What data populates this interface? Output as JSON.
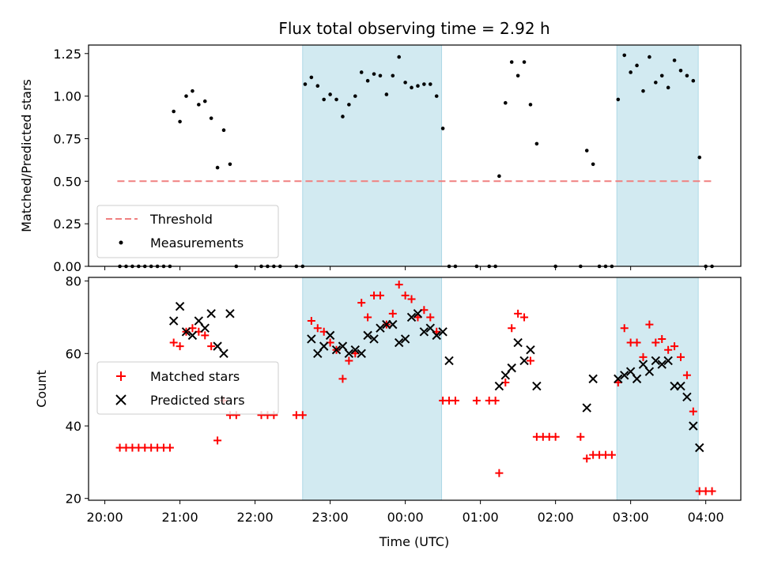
{
  "chart_data": [
    {
      "type": "scatter",
      "title": "Flux total observing time = 2.92 h",
      "xlabel": "",
      "ylabel": "Matched/Predicted stars",
      "xlim": [
        "19:47",
        "04:28"
      ],
      "ylim": [
        0,
        1.3
      ],
      "yticks": [
        "0.00",
        "0.25",
        "0.50",
        "0.75",
        "1.00",
        "1.25"
      ],
      "shaded_intervals": [
        [
          "22:38",
          "00:29"
        ],
        [
          "02:49",
          "03:54"
        ]
      ],
      "shade_color": "#add8e6",
      "threshold": {
        "name": "Threshold",
        "y": 0.5,
        "x_range": [
          "20:10",
          "04:05"
        ],
        "color": "#f08080",
        "style": "dashed"
      },
      "legend": {
        "location": "lower-left",
        "entries": [
          "Threshold",
          "Measurements"
        ]
      },
      "series": [
        {
          "name": "Measurements",
          "color": "#000000",
          "marker": "dot",
          "points": [
            [
              "20:12",
              0
            ],
            [
              "20:17",
              0
            ],
            [
              "20:22",
              0
            ],
            [
              "20:27",
              0
            ],
            [
              "20:32",
              0
            ],
            [
              "20:37",
              0
            ],
            [
              "20:42",
              0
            ],
            [
              "20:47",
              0
            ],
            [
              "20:52",
              0
            ],
            [
              "20:55",
              0.91
            ],
            [
              "21:00",
              0.85
            ],
            [
              "21:05",
              1.0
            ],
            [
              "21:10",
              1.03
            ],
            [
              "21:15",
              0.95
            ],
            [
              "21:20",
              0.97
            ],
            [
              "21:25",
              0.87
            ],
            [
              "21:30",
              0.58
            ],
            [
              "21:35",
              0.8
            ],
            [
              "21:40",
              0.6
            ],
            [
              "21:45",
              0
            ],
            [
              "22:05",
              0
            ],
            [
              "22:10",
              0
            ],
            [
              "22:15",
              0
            ],
            [
              "22:20",
              0
            ],
            [
              "22:33",
              0
            ],
            [
              "22:38",
              0
            ],
            [
              "22:40",
              1.07
            ],
            [
              "22:45",
              1.11
            ],
            [
              "22:50",
              1.06
            ],
            [
              "22:55",
              0.98
            ],
            [
              "23:00",
              1.01
            ],
            [
              "23:05",
              0.98
            ],
            [
              "23:10",
              0.88
            ],
            [
              "23:15",
              0.95
            ],
            [
              "23:20",
              1.0
            ],
            [
              "23:25",
              1.14
            ],
            [
              "23:30",
              1.09
            ],
            [
              "23:35",
              1.13
            ],
            [
              "23:40",
              1.12
            ],
            [
              "23:45",
              1.01
            ],
            [
              "23:50",
              1.12
            ],
            [
              "23:55",
              1.23
            ],
            [
              "00:00",
              1.08
            ],
            [
              "00:05",
              1.05
            ],
            [
              "00:10",
              1.06
            ],
            [
              "00:15",
              1.07
            ],
            [
              "00:20",
              1.07
            ],
            [
              "00:25",
              1.0
            ],
            [
              "00:30",
              0.81
            ],
            [
              "00:35",
              0
            ],
            [
              "00:40",
              0
            ],
            [
              "00:57",
              0
            ],
            [
              "01:07",
              0
            ],
            [
              "01:12",
              0
            ],
            [
              "01:15",
              0.53
            ],
            [
              "01:20",
              0.96
            ],
            [
              "01:25",
              1.2
            ],
            [
              "01:30",
              1.12
            ],
            [
              "01:35",
              1.2
            ],
            [
              "01:40",
              0.95
            ],
            [
              "01:45",
              0.72
            ],
            [
              "02:00",
              0
            ],
            [
              "02:20",
              0
            ],
            [
              "02:35",
              0
            ],
            [
              "02:40",
              0
            ],
            [
              "02:45",
              0
            ],
            [
              "02:25",
              0.68
            ],
            [
              "02:30",
              0.6
            ],
            [
              "02:50",
              0.98
            ],
            [
              "02:55",
              1.24
            ],
            [
              "03:00",
              1.14
            ],
            [
              "03:05",
              1.18
            ],
            [
              "03:10",
              1.03
            ],
            [
              "03:15",
              1.23
            ],
            [
              "03:20",
              1.08
            ],
            [
              "03:25",
              1.12
            ],
            [
              "03:30",
              1.05
            ],
            [
              "03:35",
              1.21
            ],
            [
              "03:40",
              1.15
            ],
            [
              "03:45",
              1.12
            ],
            [
              "03:50",
              1.09
            ],
            [
              "03:55",
              0.64
            ],
            [
              "04:00",
              0
            ],
            [
              "04:05",
              0
            ]
          ]
        }
      ]
    },
    {
      "type": "scatter",
      "title": "",
      "xlabel": "Time (UTC)",
      "ylabel": "Count",
      "xlim": [
        "19:47",
        "04:28"
      ],
      "ylim": [
        19.5,
        81
      ],
      "yticks": [
        "20",
        "40",
        "60",
        "80"
      ],
      "xticks": [
        "20:00",
        "21:00",
        "22:00",
        "23:00",
        "00:00",
        "01:00",
        "02:00",
        "03:00",
        "04:00"
      ],
      "shaded_intervals": [
        [
          "22:38",
          "00:29"
        ],
        [
          "02:49",
          "03:54"
        ]
      ],
      "shade_color": "#add8e6",
      "legend": {
        "location": "center-left",
        "entries": [
          "Matched stars",
          "Predicted stars"
        ]
      },
      "series": [
        {
          "name": "Matched stars",
          "color": "#ff0000",
          "marker": "plus",
          "points": [
            [
              "20:12",
              34
            ],
            [
              "20:17",
              34
            ],
            [
              "20:22",
              34
            ],
            [
              "20:27",
              34
            ],
            [
              "20:32",
              34
            ],
            [
              "20:37",
              34
            ],
            [
              "20:42",
              34
            ],
            [
              "20:47",
              34
            ],
            [
              "20:52",
              34
            ],
            [
              "20:55",
              63
            ],
            [
              "21:00",
              62
            ],
            [
              "21:05",
              66
            ],
            [
              "21:10",
              67
            ],
            [
              "21:15",
              66
            ],
            [
              "21:20",
              65
            ],
            [
              "21:25",
              62
            ],
            [
              "21:30",
              36
            ],
            [
              "21:35",
              47
            ],
            [
              "21:40",
              43
            ],
            [
              "21:45",
              43
            ],
            [
              "22:05",
              43
            ],
            [
              "22:10",
              43
            ],
            [
              "22:15",
              43
            ],
            [
              "22:33",
              43
            ],
            [
              "22:38",
              43
            ],
            [
              "22:45",
              69
            ],
            [
              "22:50",
              67
            ],
            [
              "22:55",
              66
            ],
            [
              "23:00",
              63
            ],
            [
              "23:05",
              61
            ],
            [
              "23:10",
              53
            ],
            [
              "23:15",
              58
            ],
            [
              "23:20",
              60
            ],
            [
              "23:25",
              74
            ],
            [
              "23:30",
              70
            ],
            [
              "23:35",
              76
            ],
            [
              "23:40",
              76
            ],
            [
              "23:45",
              68
            ],
            [
              "23:50",
              71
            ],
            [
              "23:55",
              79
            ],
            [
              "00:00",
              76
            ],
            [
              "00:05",
              75
            ],
            [
              "00:10",
              70
            ],
            [
              "00:15",
              72
            ],
            [
              "00:20",
              70
            ],
            [
              "00:25",
              66
            ],
            [
              "00:30",
              47
            ],
            [
              "00:35",
              47
            ],
            [
              "00:40",
              47
            ],
            [
              "00:57",
              47
            ],
            [
              "01:07",
              47
            ],
            [
              "01:12",
              47
            ],
            [
              "01:15",
              27
            ],
            [
              "01:20",
              52
            ],
            [
              "01:25",
              67
            ],
            [
              "01:30",
              71
            ],
            [
              "01:35",
              70
            ],
            [
              "01:40",
              58
            ],
            [
              "01:45",
              37
            ],
            [
              "01:50",
              37
            ],
            [
              "01:55",
              37
            ],
            [
              "02:00",
              37
            ],
            [
              "02:20",
              37
            ],
            [
              "02:25",
              31
            ],
            [
              "02:30",
              32
            ],
            [
              "02:35",
              32
            ],
            [
              "02:40",
              32
            ],
            [
              "02:45",
              32
            ],
            [
              "02:50",
              52
            ],
            [
              "02:55",
              67
            ],
            [
              "03:00",
              63
            ],
            [
              "03:05",
              63
            ],
            [
              "03:10",
              59
            ],
            [
              "03:15",
              68
            ],
            [
              "03:20",
              63
            ],
            [
              "03:25",
              64
            ],
            [
              "03:30",
              61
            ],
            [
              "03:35",
              62
            ],
            [
              "03:40",
              59
            ],
            [
              "03:45",
              54
            ],
            [
              "03:50",
              44
            ],
            [
              "03:55",
              22
            ],
            [
              "04:00",
              22
            ],
            [
              "04:05",
              22
            ]
          ]
        },
        {
          "name": "Predicted stars",
          "color": "#000000",
          "marker": "x",
          "points": [
            [
              "20:55",
              69
            ],
            [
              "21:00",
              73
            ],
            [
              "21:05",
              66
            ],
            [
              "21:10",
              65
            ],
            [
              "21:15",
              69
            ],
            [
              "21:20",
              67
            ],
            [
              "21:25",
              71
            ],
            [
              "21:30",
              62
            ],
            [
              "21:35",
              60
            ],
            [
              "21:40",
              71
            ],
            [
              "22:45",
              64
            ],
            [
              "22:50",
              60
            ],
            [
              "22:55",
              62
            ],
            [
              "23:00",
              65
            ],
            [
              "23:05",
              61
            ],
            [
              "23:10",
              62
            ],
            [
              "23:15",
              60
            ],
            [
              "23:20",
              61
            ],
            [
              "23:25",
              60
            ],
            [
              "23:30",
              65
            ],
            [
              "23:35",
              64
            ],
            [
              "23:40",
              67
            ],
            [
              "23:45",
              68
            ],
            [
              "23:50",
              68
            ],
            [
              "23:55",
              63
            ],
            [
              "00:00",
              64
            ],
            [
              "00:05",
              70
            ],
            [
              "00:10",
              71
            ],
            [
              "00:15",
              66
            ],
            [
              "00:20",
              67
            ],
            [
              "00:25",
              65
            ],
            [
              "00:30",
              66
            ],
            [
              "00:35",
              58
            ],
            [
              "01:15",
              51
            ],
            [
              "01:20",
              54
            ],
            [
              "01:25",
              56
            ],
            [
              "01:30",
              63
            ],
            [
              "01:35",
              58
            ],
            [
              "01:40",
              61
            ],
            [
              "01:45",
              51
            ],
            [
              "02:25",
              45
            ],
            [
              "02:30",
              53
            ],
            [
              "02:50",
              53
            ],
            [
              "02:55",
              54
            ],
            [
              "03:00",
              55
            ],
            [
              "03:05",
              53
            ],
            [
              "03:10",
              57
            ],
            [
              "03:15",
              55
            ],
            [
              "03:20",
              58
            ],
            [
              "03:25",
              57
            ],
            [
              "03:30",
              58
            ],
            [
              "03:35",
              51
            ],
            [
              "03:40",
              51
            ],
            [
              "03:45",
              48
            ],
            [
              "03:50",
              40
            ],
            [
              "03:55",
              34
            ]
          ]
        }
      ]
    }
  ]
}
